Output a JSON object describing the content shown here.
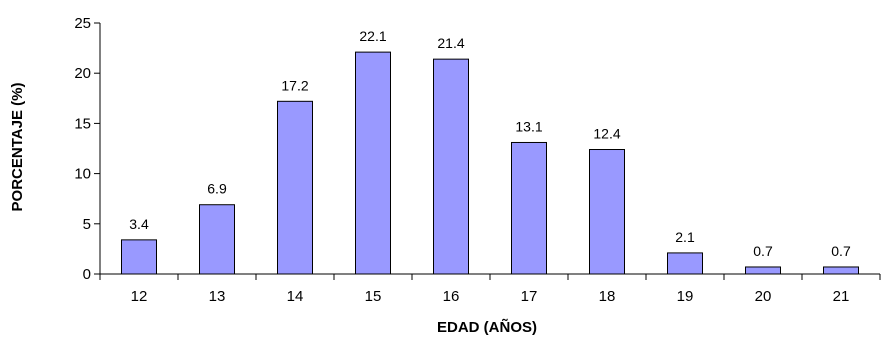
{
  "chart_data": {
    "type": "bar",
    "title": "",
    "xlabel": "EDAD (AÑOS)",
    "ylabel": "PORCENTAJE (%)",
    "categories": [
      "12",
      "13",
      "14",
      "15",
      "16",
      "17",
      "18",
      "19",
      "20",
      "21"
    ],
    "values": [
      3.4,
      6.9,
      17.2,
      22.1,
      21.4,
      13.1,
      12.4,
      2.1,
      0.7,
      0.7
    ],
    "data_labels": [
      "3.4",
      "6.9",
      "17.2",
      "22.1",
      "21.4",
      "13.1",
      "12.4",
      "2.1",
      "0.7",
      "0.7"
    ],
    "ylim": [
      0,
      25
    ],
    "yticks": [
      "0",
      "5",
      "10",
      "15",
      "20",
      "25"
    ],
    "grid": false,
    "legend": "none",
    "bar_color": "#9999FF",
    "bar_stroke": "#000000"
  }
}
